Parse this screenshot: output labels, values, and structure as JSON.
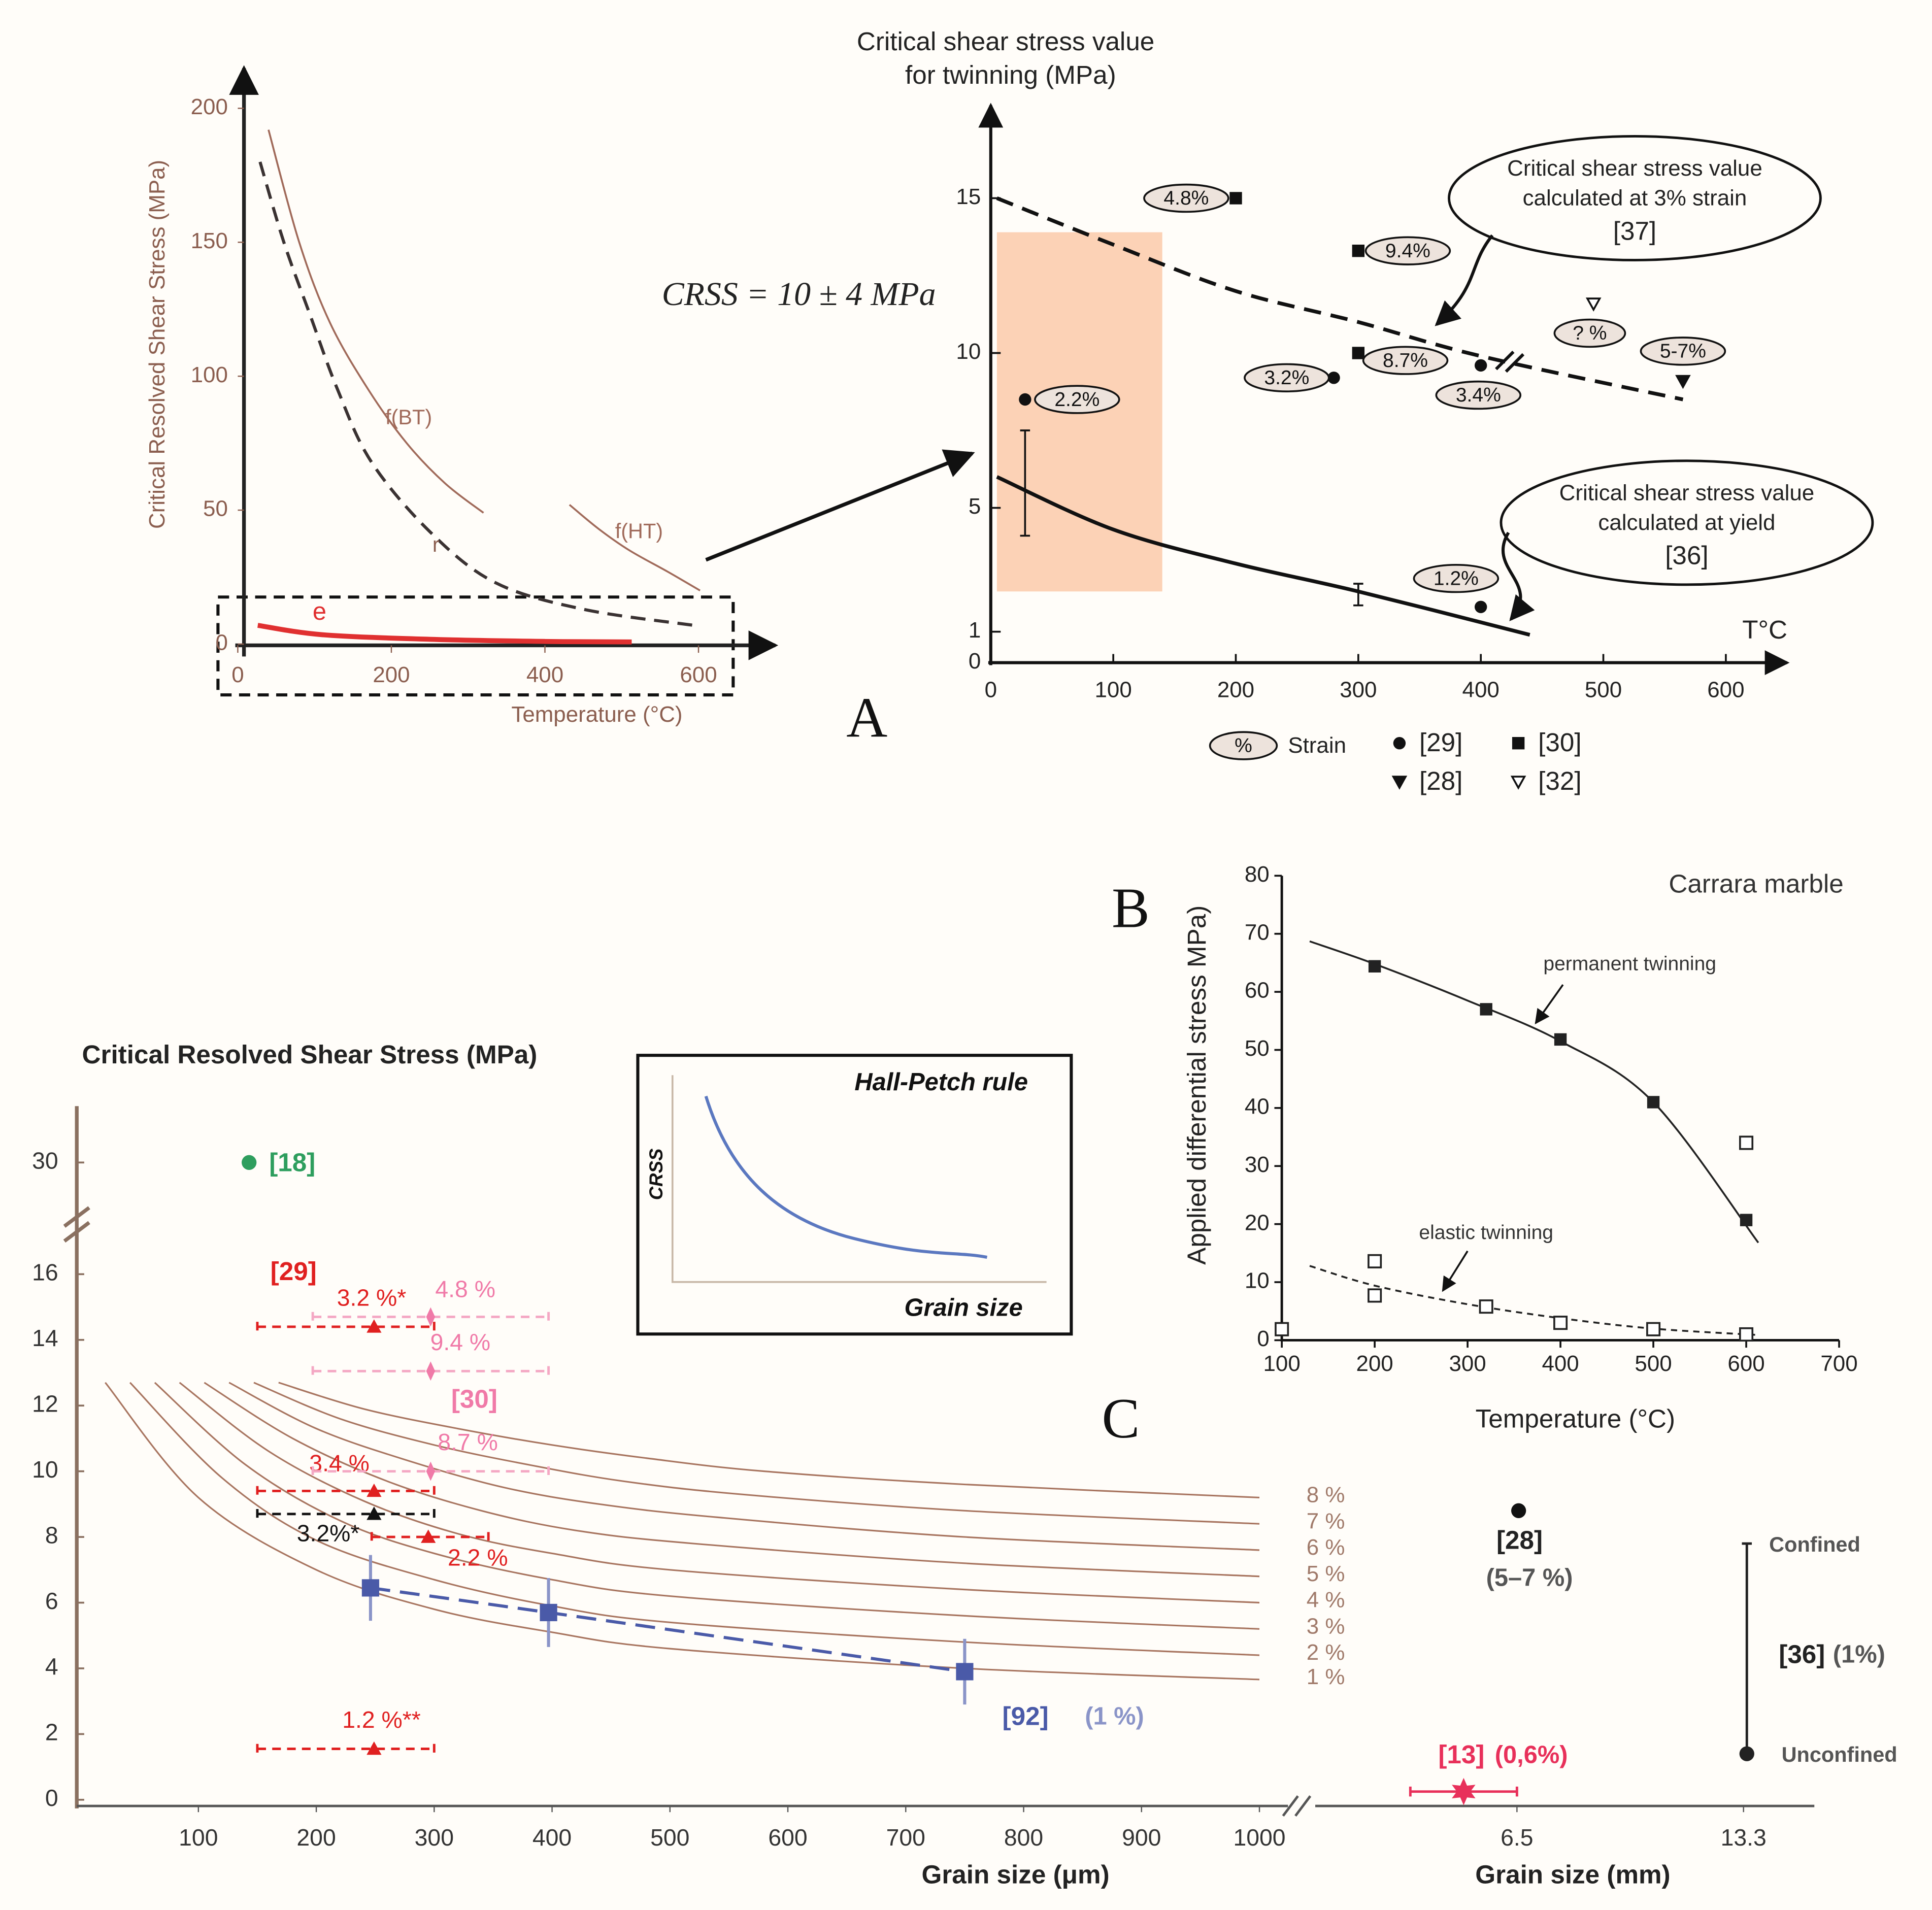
{
  "chart_data": [
    {
      "type": "line",
      "ylabel": "Critical Resolved Shear Stress (MPa)",
      "xlabel": "Temperature (°C)",
      "xlim": [
        0,
        700
      ],
      "ylim": [
        0,
        215
      ],
      "xticks": [
        0,
        200,
        400,
        600
      ],
      "yticks": [
        0,
        50,
        100,
        150,
        200
      ],
      "series": [
        {
          "name": "f(BT)",
          "color": "#a06a5a",
          "dash": false,
          "x": [
            40,
            80,
            120,
            170,
            220,
            270,
            320
          ],
          "values": [
            192,
            150,
            120,
            95,
            75,
            60,
            49
          ]
        },
        {
          "name": "r",
          "color": "#3a3232",
          "dash": true,
          "x": [
            29,
            60,
            94,
            130,
            174,
            250,
            335,
            450,
            594
          ],
          "values": [
            180,
            150,
            123,
            95,
            68,
            42,
            23,
            13,
            7
          ]
        },
        {
          "name": "f(HT)",
          "color": "#a06a5a",
          "dash": false,
          "x": [
            432,
            470,
            510,
            560,
            602
          ],
          "values": [
            52,
            43,
            35,
            27,
            20
          ]
        },
        {
          "name": "e",
          "color": "#e03030",
          "dash": false,
          "x": [
            26,
            110,
            250,
            400,
            513
          ],
          "values": [
            7,
            3.5,
            1.8,
            1,
            0.8
          ]
        }
      ]
    },
    {
      "type": "scatter",
      "panel_label": "A",
      "title": [
        "Critical  shear stress value",
        "for twinning (MPa)"
      ],
      "xlabel": "T°C",
      "equation": "CRSS = 10 ± 4 MPa",
      "xlim": [
        0,
        650
      ],
      "ylim": [
        0,
        18
      ],
      "xticks": [
        0,
        100,
        200,
        300,
        400,
        500,
        600
      ],
      "yticks": [
        0,
        1,
        5,
        10,
        15
      ],
      "highlight": {
        "x": [
          5,
          140
        ],
        "y": [
          2.3,
          13.9
        ],
        "color": "#fcd2b6"
      },
      "curves": [
        {
          "dash": true,
          "x": [
            5,
            100,
            200,
            300,
            400,
            565
          ],
          "values": [
            15,
            13.5,
            12,
            11,
            9.9,
            8.5
          ]
        },
        {
          "dash": false,
          "x": [
            5,
            100,
            200,
            300,
            440
          ],
          "values": [
            6,
            4.3,
            3.2,
            2.3,
            0.9
          ]
        }
      ],
      "error_bars": [
        {
          "x": 28,
          "value": 5.8,
          "error": 1.7
        },
        {
          "x": 300,
          "value": 2.2,
          "error": 0.35
        }
      ],
      "series": [
        {
          "name": "[29]",
          "marker": "circle",
          "color": "#111111",
          "x": [
            28,
            280,
            400,
            400
          ],
          "values": [
            8.5,
            9.2,
            9.6,
            1.8
          ],
          "labels": [
            "2.2%",
            "3.2%",
            "3.4%",
            "1.2%"
          ]
        },
        {
          "name": "[30]",
          "marker": "square",
          "color": "#111111",
          "x": [
            200,
            300,
            300
          ],
          "values": [
            15,
            13.3,
            10
          ],
          "labels": [
            "4.8%",
            "9.4%",
            "8.7%"
          ]
        },
        {
          "name": "[28]",
          "marker": "triangle-down",
          "color": "#111111",
          "x": [
            565
          ],
          "values": [
            9.1
          ],
          "labels": [
            "5-7%"
          ]
        },
        {
          "name": "[32]",
          "marker": "triangle-down-open",
          "color": "#111111",
          "x": [
            492
          ],
          "values": [
            11.6
          ],
          "labels": [
            "? %"
          ]
        }
      ],
      "strain_legend": {
        "symbol": "%",
        "label": "Strain"
      },
      "callouts": [
        [
          "Critical shear stress value",
          "calculated at 3% strain",
          "[37]"
        ],
        [
          "Critical shear stress value",
          "calculated at yield",
          "[36]"
        ]
      ]
    },
    {
      "type": "scatter",
      "panel_label": "B",
      "title": "Carrara marble",
      "xlabel": "Temperature (°C)",
      "ylabel": "Applied differential stress MPa)",
      "xlim": [
        100,
        700
      ],
      "ylim": [
        0,
        80
      ],
      "xticks": [
        100,
        200,
        300,
        400,
        500,
        600,
        700
      ],
      "yticks": [
        0,
        10,
        20,
        30,
        40,
        50,
        60,
        70,
        80
      ],
      "series": [
        {
          "name": "permanent twinning",
          "marker": "square",
          "color": "#222222",
          "x": [
            200,
            320,
            400,
            500,
            600
          ],
          "values": [
            64.4,
            57,
            51.8,
            41,
            20.7
          ],
          "fit": {
            "dash": false,
            "x": [
              130,
              200,
              300,
              400,
              500,
              613
            ],
            "values": [
              68.7,
              64.8,
              58.5,
              51.5,
              41.0,
              16.8
            ]
          }
        },
        {
          "name": "elastic twinning",
          "marker": "square-open",
          "color": "#222222",
          "x": [
            100,
            200,
            200,
            320,
            400,
            500,
            600,
            600
          ],
          "values": [
            1.9,
            13.6,
            7.7,
            5.8,
            3,
            1.9,
            34,
            1
          ],
          "fit": {
            "dash": true,
            "x": [
              130,
              200,
              300,
              400,
              500,
              613
            ],
            "values": [
              12.8,
              9.4,
              6.2,
              3.8,
              2.0,
              0.9
            ]
          }
        }
      ]
    },
    {
      "type": "scatter",
      "panel_label": "C",
      "title": "Critical Resolved Shear Stress (MPa)",
      "xlabel": "Grain size (μm)",
      "x2label": "Grain size (mm)",
      "xlim": [
        0,
        1040
      ],
      "x2lim": [
        0,
        15.5
      ],
      "ylim": [
        0,
        31
      ],
      "ybreak": [
        16.5,
        29.5
      ],
      "xticks": [
        100,
        200,
        300,
        400,
        500,
        600,
        700,
        800,
        900,
        1000
      ],
      "x2ticks": [
        6.5,
        13.3
      ],
      "yticks": [
        0,
        2,
        4,
        6,
        8,
        10,
        12,
        14,
        16,
        30
      ],
      "inset": {
        "title": "Hall-Petch rule",
        "ylabel": "CRSS",
        "xlabel": "Grain size"
      },
      "strain_curves": [
        {
          "name": "1 %",
          "x": [
            21,
            100,
            200,
            300,
            400,
            500,
            750,
            1000
          ],
          "values": [
            12.7,
            9.2,
            7.0,
            5.8,
            5.1,
            4.6,
            4.0,
            3.66
          ]
        },
        {
          "name": "2 %",
          "x": [
            42,
            120,
            200,
            300,
            400,
            500,
            750,
            1000
          ],
          "values": [
            12.7,
            9.8,
            7.9,
            6.7,
            5.9,
            5.4,
            4.8,
            4.4
          ]
        },
        {
          "name": "3 %",
          "x": [
            63,
            140,
            220,
            300,
            400,
            500,
            750,
            1000
          ],
          "values": [
            12.7,
            10.2,
            8.5,
            7.5,
            6.7,
            6.2,
            5.6,
            5.2
          ]
        },
        {
          "name": "4 %",
          "x": [
            84,
            160,
            240,
            320,
            400,
            500,
            750,
            1000
          ],
          "values": [
            12.7,
            10.6,
            9.1,
            8.1,
            7.5,
            7.0,
            6.4,
            6.0
          ]
        },
        {
          "name": "5 %",
          "x": [
            105,
            180,
            260,
            340,
            420,
            520,
            750,
            1000
          ],
          "values": [
            12.7,
            11.0,
            9.7,
            8.8,
            8.2,
            7.8,
            7.2,
            6.8
          ]
        },
        {
          "name": "6 %",
          "x": [
            126,
            200,
            280,
            360,
            440,
            540,
            750,
            1000
          ],
          "values": [
            12.7,
            11.3,
            10.3,
            9.5,
            9.0,
            8.6,
            8.0,
            7.6
          ]
        },
        {
          "name": "7 %",
          "x": [
            147,
            220,
            300,
            380,
            460,
            560,
            750,
            1000
          ],
          "values": [
            12.7,
            11.6,
            10.8,
            10.2,
            9.7,
            9.3,
            8.8,
            8.4
          ]
        },
        {
          "name": "8 %",
          "x": [
            168,
            240,
            320,
            400,
            480,
            580,
            750,
            1000
          ],
          "values": [
            12.7,
            11.9,
            11.3,
            10.8,
            10.4,
            10.0,
            9.6,
            9.2
          ]
        }
      ],
      "series": [
        {
          "name": "[18]",
          "marker": "circle",
          "color": "#2e9e5e",
          "x": [
            143
          ],
          "values": [
            30
          ]
        },
        {
          "name": "[29]",
          "marker": "triangle",
          "color": "#e02020",
          "x": [
            249,
            249,
            295,
            249
          ],
          "values": [
            14.4,
            9.4,
            8.0,
            1.55
          ],
          "xmin": [
            150,
            150,
            247,
            150
          ],
          "xmax": [
            300,
            300,
            346,
            300
          ],
          "labels": [
            "3.2 %*",
            "3.4 %",
            "2.2 %",
            "1.2 %**"
          ]
        },
        {
          "marker": "triangle",
          "color": "#111111",
          "x": [
            249
          ],
          "values": [
            8.7
          ],
          "xmin": [
            150
          ],
          "xmax": [
            300
          ],
          "labels": [
            "3.2%*"
          ]
        },
        {
          "name": "[30]",
          "marker": "diamond",
          "color": "#f07aa8",
          "x": [
            297,
            297,
            297
          ],
          "values": [
            14.7,
            13.05,
            10.0
          ],
          "xmin": [
            197,
            197,
            197
          ],
          "xmax": [
            397,
            397,
            397
          ],
          "labels": [
            "4.8 %",
            "9.4 %",
            "8.7 %"
          ]
        },
        {
          "name": "[92]",
          "note": "(1 %)",
          "marker": "square",
          "color": "#4a5aa8",
          "line": true,
          "x": [
            246,
            397,
            750
          ],
          "values": [
            6.45,
            5.7,
            3.9
          ],
          "errors": [
            1,
            1.05,
            1
          ]
        },
        {
          "name": "[28]",
          "note": "(5–7 %)",
          "axis": "x2",
          "marker": "circle",
          "color": "#111111",
          "x": [
            6.55
          ],
          "values": [
            8.8
          ]
        },
        {
          "name": "[13]",
          "note": "(0,6%)",
          "axis": "x2",
          "marker": "star",
          "color": "#e8305a",
          "x": [
            4.9
          ],
          "values": [
            0.25
          ],
          "xmin": [
            3.3
          ],
          "xmax": [
            6.5
          ]
        },
        {
          "name": "[36]",
          "note": "(1%)",
          "axis": "x2",
          "marker": "range",
          "color": "#222222",
          "x": [
            13.4,
            13.4
          ],
          "values": [
            7.8,
            1.4
          ],
          "labels": [
            "Confined",
            "Unconfined"
          ]
        }
      ]
    }
  ]
}
